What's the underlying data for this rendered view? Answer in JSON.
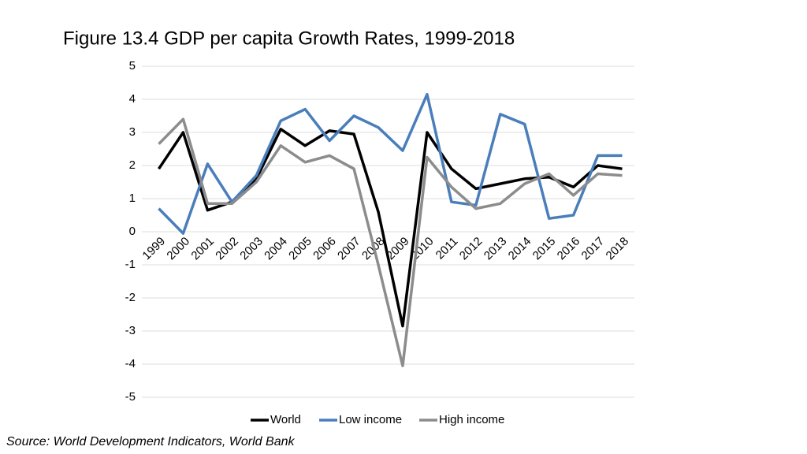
{
  "chart_data": {
    "type": "line",
    "title": "Figure 13.4 GDP per capita Growth Rates, 1999-2018",
    "source": "Source: World Development Indicators, World Bank",
    "categories": [
      "1999",
      "2000",
      "2001",
      "2002",
      "2003",
      "2004",
      "2005",
      "2006",
      "2007",
      "2008",
      "2009",
      "2010",
      "2011",
      "2012",
      "2013",
      "2014",
      "2015",
      "2016",
      "2017",
      "2018"
    ],
    "series": [
      {
        "name": "World",
        "color": "#000000",
        "values": [
          1.9,
          3.0,
          0.65,
          0.9,
          1.6,
          3.1,
          2.6,
          3.05,
          2.95,
          0.6,
          -2.85,
          3.0,
          1.9,
          1.3,
          1.45,
          1.6,
          1.65,
          1.35,
          2.0,
          1.9
        ]
      },
      {
        "name": "Low income",
        "color": "#4a7ebb",
        "values": [
          0.7,
          -0.05,
          2.05,
          0.9,
          1.7,
          3.35,
          3.7,
          2.75,
          3.5,
          3.15,
          2.45,
          4.15,
          0.9,
          0.8,
          3.55,
          3.25,
          0.4,
          0.5,
          2.3,
          2.3
        ]
      },
      {
        "name": "High income",
        "color": "#8c8c8c",
        "values": [
          2.65,
          3.4,
          0.85,
          0.85,
          1.5,
          2.6,
          2.1,
          2.3,
          1.9,
          -1.0,
          -4.05,
          2.25,
          1.35,
          0.7,
          0.85,
          1.45,
          1.75,
          1.1,
          1.75,
          1.7
        ]
      }
    ],
    "ylim": [
      -5,
      5
    ],
    "yticks": [
      -5,
      -4,
      -3,
      -2,
      -1,
      0,
      1,
      2,
      3,
      4,
      5
    ],
    "grid": true,
    "legend": "bottom"
  }
}
